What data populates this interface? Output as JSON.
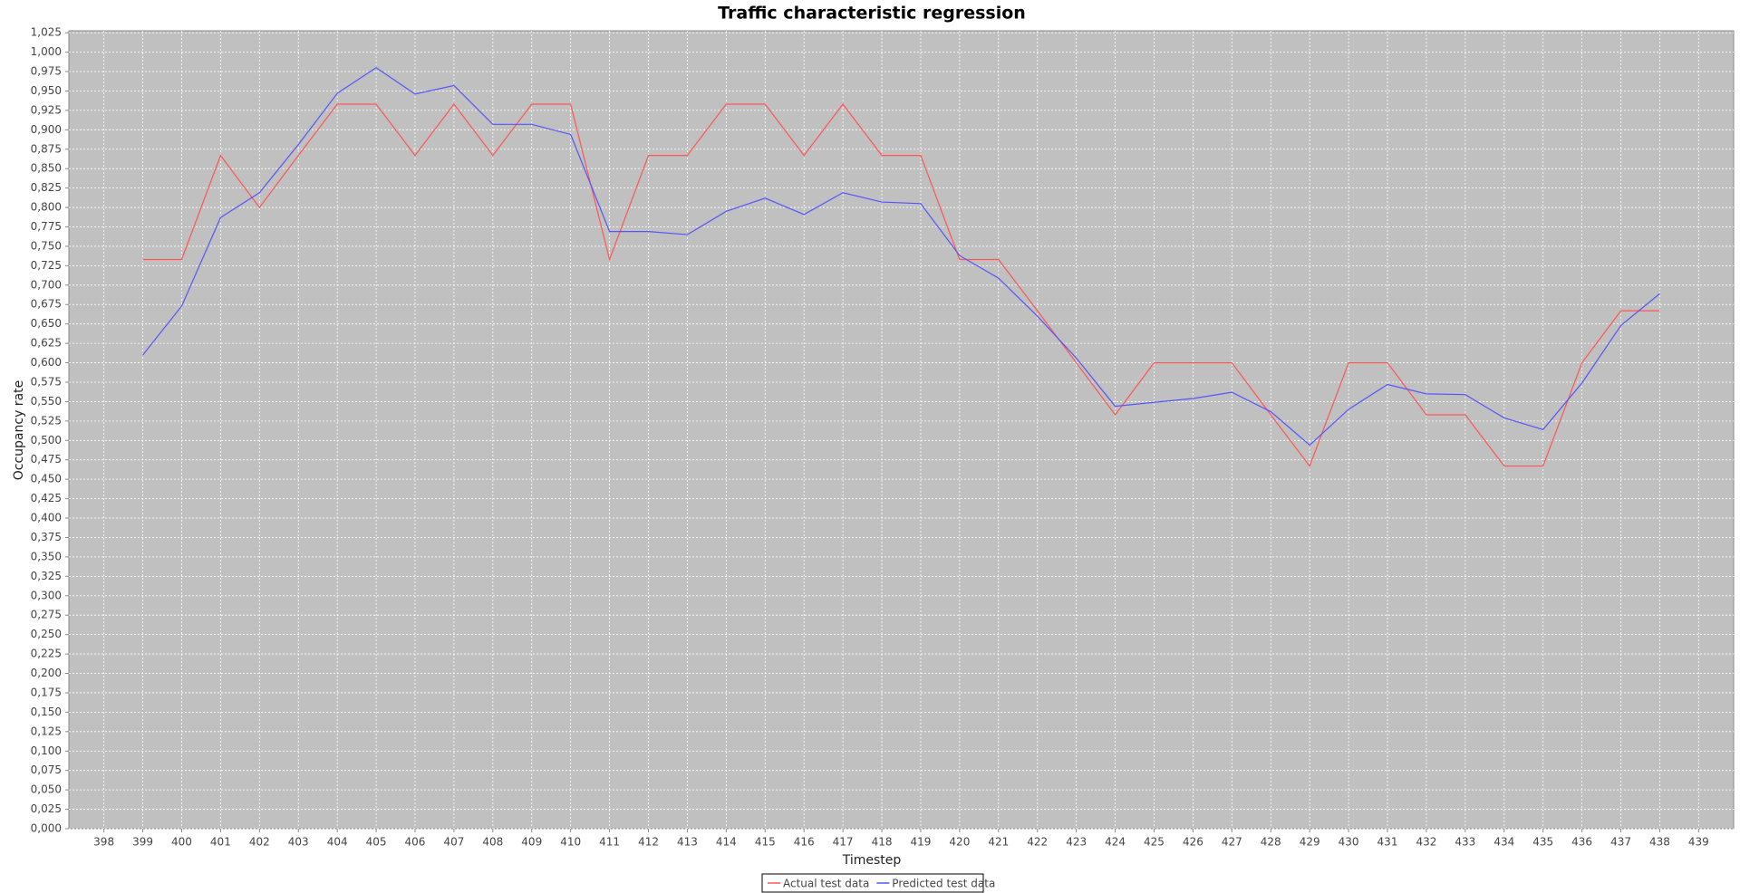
{
  "chart_data": {
    "type": "line",
    "title": "Traffic characteristic regression",
    "x_label": "Timestep",
    "y_label": "Occupancy rate",
    "x": [
      399,
      400,
      401,
      402,
      403,
      404,
      405,
      406,
      407,
      408,
      409,
      410,
      411,
      412,
      413,
      414,
      415,
      416,
      417,
      418,
      419,
      420,
      421,
      422,
      423,
      424,
      425,
      426,
      427,
      428,
      429,
      430,
      431,
      432,
      433,
      434,
      435,
      436,
      437,
      438
    ],
    "series": [
      {
        "name": "Actual test data",
        "color": "#ff5555",
        "values": [
          0.733,
          0.733,
          0.867,
          0.8,
          0.867,
          0.933,
          0.933,
          0.867,
          0.933,
          0.867,
          0.933,
          0.933,
          0.733,
          0.867,
          0.867,
          0.933,
          0.933,
          0.867,
          0.933,
          0.867,
          0.867,
          0.733,
          0.733,
          0.667,
          0.6,
          0.533,
          0.6,
          0.6,
          0.6,
          0.533,
          0.467,
          0.6,
          0.6,
          0.533,
          0.533,
          0.467,
          0.467,
          0.6,
          0.667,
          0.667
        ]
      },
      {
        "name": "Predicted test data",
        "color": "#5555ff",
        "values": [
          0.61,
          0.673,
          0.787,
          0.819,
          0.881,
          0.947,
          0.98,
          0.946,
          0.957,
          0.907,
          0.907,
          0.894,
          0.769,
          0.769,
          0.765,
          0.795,
          0.812,
          0.791,
          0.819,
          0.807,
          0.805,
          0.738,
          0.709,
          0.66,
          0.606,
          0.544,
          0.549,
          0.554,
          0.562,
          0.537,
          0.494,
          0.54,
          0.572,
          0.56,
          0.559,
          0.529,
          0.514,
          0.574,
          0.648,
          0.689
        ]
      }
    ],
    "xlim": [
      397.1,
      439.9
    ],
    "xticks": [
      398,
      399,
      400,
      401,
      402,
      403,
      404,
      405,
      406,
      407,
      408,
      409,
      410,
      411,
      412,
      413,
      414,
      415,
      416,
      417,
      418,
      419,
      420,
      421,
      422,
      423,
      424,
      425,
      426,
      427,
      428,
      429,
      430,
      431,
      432,
      433,
      434,
      435,
      436,
      437,
      438,
      439
    ],
    "ylim": [
      0,
      1.0275
    ],
    "yticks": [
      {
        "value": 0,
        "label": "0,000"
      },
      {
        "value": 0.025,
        "label": "0,025"
      },
      {
        "value": 0.05,
        "label": "0,050"
      },
      {
        "value": 0.075,
        "label": "0,075"
      },
      {
        "value": 0.1,
        "label": "0,100"
      },
      {
        "value": 0.125,
        "label": "0,125"
      },
      {
        "value": 0.15,
        "label": "0,150"
      },
      {
        "value": 0.175,
        "label": "0,175"
      },
      {
        "value": 0.2,
        "label": "0,200"
      },
      {
        "value": 0.225,
        "label": "0,225"
      },
      {
        "value": 0.25,
        "label": "0,250"
      },
      {
        "value": 0.275,
        "label": "0,275"
      },
      {
        "value": 0.3,
        "label": "0,300"
      },
      {
        "value": 0.325,
        "label": "0,325"
      },
      {
        "value": 0.35,
        "label": "0,350"
      },
      {
        "value": 0.375,
        "label": "0,375"
      },
      {
        "value": 0.4,
        "label": "0,400"
      },
      {
        "value": 0.425,
        "label": "0,425"
      },
      {
        "value": 0.45,
        "label": "0,450"
      },
      {
        "value": 0.475,
        "label": "0,475"
      },
      {
        "value": 0.5,
        "label": "0,500"
      },
      {
        "value": 0.525,
        "label": "0,525"
      },
      {
        "value": 0.55,
        "label": "0,550"
      },
      {
        "value": 0.575,
        "label": "0,575"
      },
      {
        "value": 0.6,
        "label": "0,600"
      },
      {
        "value": 0.625,
        "label": "0,625"
      },
      {
        "value": 0.65,
        "label": "0,650"
      },
      {
        "value": 0.675,
        "label": "0,675"
      },
      {
        "value": 0.7,
        "label": "0,700"
      },
      {
        "value": 0.725,
        "label": "0,725"
      },
      {
        "value": 0.75,
        "label": "0,750"
      },
      {
        "value": 0.775,
        "label": "0,775"
      },
      {
        "value": 0.8,
        "label": "0,800"
      },
      {
        "value": 0.825,
        "label": "0,825"
      },
      {
        "value": 0.85,
        "label": "0,850"
      },
      {
        "value": 0.875,
        "label": "0,875"
      },
      {
        "value": 0.9,
        "label": "0,900"
      },
      {
        "value": 0.925,
        "label": "0,925"
      },
      {
        "value": 0.95,
        "label": "0,950"
      },
      {
        "value": 0.975,
        "label": "0,975"
      },
      {
        "value": 1,
        "label": "1,000"
      },
      {
        "value": 1.025,
        "label": "1,025"
      }
    ],
    "grid": true,
    "legend": "bottom"
  }
}
